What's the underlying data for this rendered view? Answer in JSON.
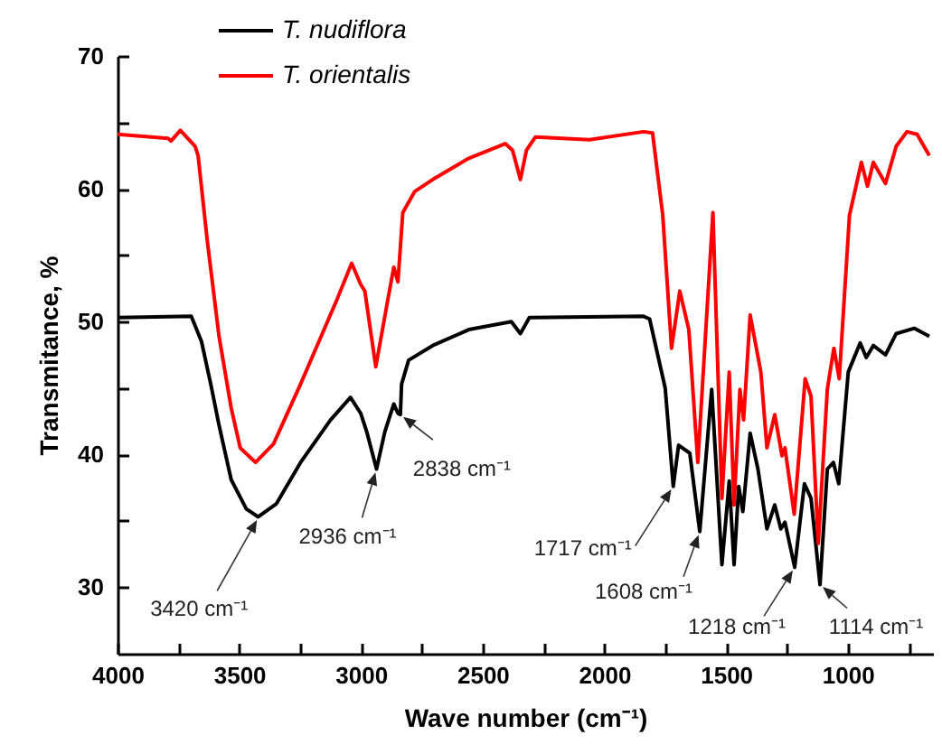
{
  "chart_data": {
    "type": "line",
    "xlabel": "Wave number (cm⁻¹)",
    "ylabel": "Transmitance, %",
    "xlim": [
      4000,
      650
    ],
    "ylim": [
      25,
      70
    ],
    "xticks": [
      4000,
      {
        "value": 3750,
        "label": null
      },
      3500,
      {
        "value": 3250,
        "label": null
      },
      3000,
      {
        "value": 2750,
        "label": null
      },
      2500,
      {
        "value": 2250,
        "label": null
      },
      2000,
      {
        "value": 1750,
        "label": null
      },
      1500,
      {
        "value": 1250,
        "label": null
      },
      1000,
      {
        "value": 750,
        "label": null
      }
    ],
    "yticks": [
      30,
      {
        "value": 35,
        "label": null
      },
      40,
      {
        "value": 45,
        "label": null
      },
      50,
      {
        "value": 55,
        "label": null
      },
      60,
      {
        "value": 65,
        "label": null
      },
      70
    ],
    "legend": "top left",
    "series": [
      {
        "name": "T. nudiflora",
        "color": "#000000",
        "x": [
          4000,
          3697,
          3655,
          3617,
          3583,
          3533,
          3471,
          3422,
          3347,
          3248,
          3125,
          3043,
          3001,
          2976,
          2936,
          2902,
          2865,
          2848,
          2838,
          2833,
          2804,
          2705,
          2557,
          2382,
          2345,
          2308,
          1839,
          1814,
          1750,
          1717,
          1695,
          1649,
          1608,
          1559,
          1517,
          1487,
          1467,
          1448,
          1431,
          1401,
          1369,
          1332,
          1300,
          1275,
          1258,
          1218,
          1178,
          1151,
          1114,
          1084,
          1059,
          1037,
          998,
          949,
          924,
          895,
          845,
          801,
          727,
          665
        ],
        "values": [
          50.3,
          50.4,
          48.5,
          45.3,
          42.2,
          38.1,
          35.9,
          35.3,
          36.3,
          39.4,
          42.6,
          44.3,
          43.1,
          41.7,
          38.9,
          41.7,
          43.8,
          43.1,
          43.0,
          45.3,
          47.1,
          48.2,
          49.4,
          50.0,
          49.1,
          50.3,
          50.4,
          50.2,
          45.0,
          37.6,
          40.7,
          40.1,
          34.2,
          44.9,
          31.7,
          38.0,
          31.7,
          37.6,
          35.7,
          41.6,
          38.9,
          34.4,
          36.2,
          34.4,
          34.9,
          31.5,
          37.8,
          36.7,
          30.2,
          38.9,
          39.4,
          37.8,
          46.2,
          48.4,
          47.3,
          48.2,
          47.5,
          49.1,
          49.5,
          48.9
        ]
      },
      {
        "name": "T. orientalis",
        "color": "#ff0000",
        "x": [
          4000,
          3792,
          3780,
          3742,
          3681,
          3669,
          3632,
          3583,
          3533,
          3496,
          3433,
          3359,
          3248,
          3100,
          3038,
          3001,
          2984,
          2939,
          2890,
          2865,
          2848,
          2828,
          2779,
          2705,
          2557,
          2407,
          2377,
          2345,
          2320,
          2283,
          2061,
          1839,
          1802,
          1760,
          1724,
          1690,
          1653,
          1616,
          1554,
          1517,
          1487,
          1467,
          1443,
          1428,
          1401,
          1357,
          1332,
          1300,
          1270,
          1258,
          1220,
          1175,
          1151,
          1121,
          1084,
          1057,
          1035,
          993,
          944,
          919,
          895,
          845,
          801,
          757,
          715,
          665
        ],
        "values": [
          64.1,
          63.8,
          63.6,
          64.4,
          63.2,
          62.5,
          56.2,
          48.9,
          43.5,
          40.5,
          39.4,
          40.8,
          45.3,
          51.6,
          54.4,
          52.8,
          52.3,
          46.6,
          51.6,
          54.1,
          53.0,
          58.2,
          59.8,
          60.7,
          62.3,
          63.4,
          62.9,
          60.7,
          62.9,
          63.9,
          63.7,
          64.3,
          64.2,
          58.0,
          48.0,
          52.3,
          49.4,
          39.4,
          58.2,
          36.7,
          46.2,
          36.2,
          44.9,
          42.6,
          50.5,
          46.2,
          40.5,
          43.0,
          39.9,
          40.5,
          35.5,
          45.7,
          44.4,
          33.3,
          44.9,
          48.0,
          45.7,
          58.0,
          62.0,
          60.2,
          62.0,
          60.4,
          63.2,
          64.3,
          64.1,
          62.5
        ]
      }
    ],
    "annotations": [
      {
        "text": "3420 cm⁻¹",
        "x": 3420,
        "y": 35.3
      },
      {
        "text": "2936 cm⁻¹",
        "x": 2936,
        "y": 38.9
      },
      {
        "text": "2838 cm⁻¹",
        "x": 2838,
        "y": 43.0
      },
      {
        "text": "1717 cm⁻¹",
        "x": 1717,
        "y": 37.6
      },
      {
        "text": "1608 cm⁻¹",
        "x": 1608,
        "y": 34.2
      },
      {
        "text": "1218 cm⁻¹",
        "x": 1218,
        "y": 31.5
      },
      {
        "text": "1114 cm⁻¹",
        "x": 1114,
        "y": 30.2
      }
    ]
  }
}
